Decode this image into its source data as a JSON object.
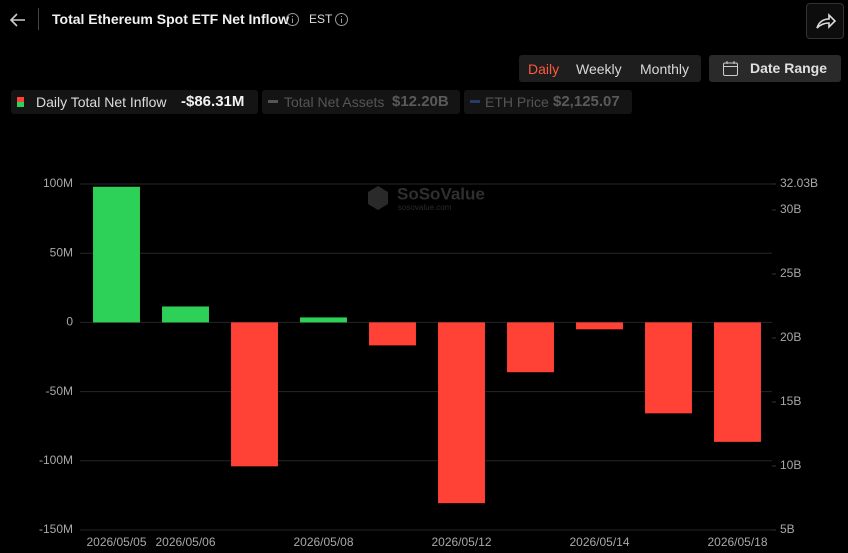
{
  "header": {
    "title": "Total Ethereum Spot ETF Net Inflow",
    "timezone": "EST"
  },
  "controls": {
    "periods": [
      "Daily",
      "Weekly",
      "Monthly"
    ],
    "date_range": "Date Range"
  },
  "watermark": {
    "brand": "SoSoValue",
    "site": "sosovalue.com"
  },
  "chart_data": {
    "type": "bar",
    "categories": [
      "2026/05/05",
      "2026/05/06",
      null,
      "2026/05/08",
      null,
      "2026/05/12",
      null,
      "2026/05/14",
      null,
      "2026/05/18"
    ],
    "series": [
      {
        "name": "Daily Total Net Inflow",
        "summary_label": "-$86.31M",
        "color": "#2ed158",
        "negative_color": "#ff4136",
        "values": [
          98,
          11.5,
          -104,
          3.6,
          -16.6,
          -130.6,
          -36,
          -5,
          -65.7,
          -86.31
        ]
      }
    ],
    "hidden_series": [
      {
        "name": "Total Net Assets",
        "summary_label": "$12.20B"
      },
      {
        "name": "ETH Price",
        "summary_label": "$2,125.07"
      }
    ],
    "ylim": [
      -150,
      100
    ],
    "yticks": [
      {
        "value": 100,
        "label": "100M"
      },
      {
        "value": 50,
        "label": "50M"
      },
      0,
      {
        "value": -50,
        "label": "-50M"
      },
      {
        "value": -100,
        "label": "-100M"
      },
      {
        "value": -150,
        "label": "-150M"
      }
    ],
    "y2lim": [
      5,
      32.03
    ],
    "y2ticks": [
      {
        "value": 32.03,
        "label": "32.03B"
      },
      {
        "value": 30,
        "label": "30B"
      },
      {
        "value": 25,
        "label": "25B"
      },
      {
        "value": 20,
        "label": "20B"
      },
      {
        "value": 15,
        "label": "15B"
      },
      {
        "value": 10,
        "label": "10B"
      },
      {
        "value": 5,
        "label": "5B"
      }
    ],
    "grid": true
  }
}
